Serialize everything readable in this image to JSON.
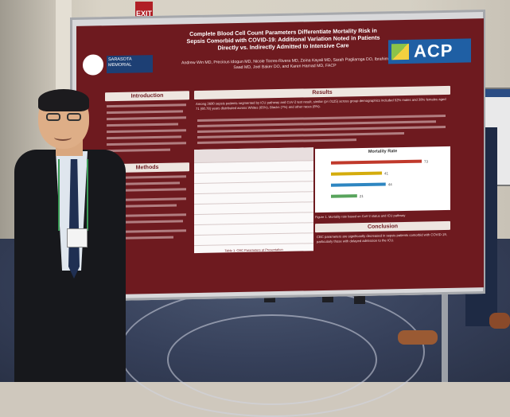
{
  "exit_sign": "EXIT",
  "poster": {
    "title": "Complete Blood Cell Count Parameters Differentiate Mortality Risk in Sepsis Comorbid with COVID-19: Additional Variation Noted in Patients Directly vs. Indirectly Admitted to Intensive Care",
    "authors": "Andrew Win MD, Precious Idogun MD, Nicole Torres-Rivera MD, Zeina Kayali MD, Sarah Pagliaroga DO, Ibrahim Saad MD, Joel Baker DO, and Karen Hamad MD, FACP",
    "logo_left": "SARASOTA MEMORIAL",
    "logo_right": "ACP",
    "sections": {
      "introduction": "Introduction",
      "methods": "Methods",
      "results": "Results",
      "conclusion": "Conclusion"
    },
    "results_text": "Among 3690 sepsis patients segmented by ICU pathway and CoV-2 test result, similar (p=.0125) across group demographics included 52% males and 38% females aged 71 (60.78) years distributed across Whites (65%), Blacks (7%) and other races (8%).",
    "conclusion_text": "CBC parameters are significantly decreased in sepsis patients comorbid with COVID-19, particularly those with delayed admission to the ICU.",
    "table_caption": "Table 1. CBC Parameters at Presentation",
    "chart": {
      "title": "Mortality Rate",
      "caption": "Figure 1. Mortality rate based on CoV-2 status and ICU pathway",
      "bar_colors": [
        "#c0392b",
        "#d4ac0d",
        "#2e86c1",
        "#58a45c"
      ]
    }
  },
  "chart_data": {
    "type": "bar",
    "title": "Mortality Rate",
    "categories": [
      "",
      "",
      "",
      ""
    ],
    "values": [
      73,
      41,
      44,
      21
    ],
    "xlim": [
      0,
      80
    ]
  }
}
